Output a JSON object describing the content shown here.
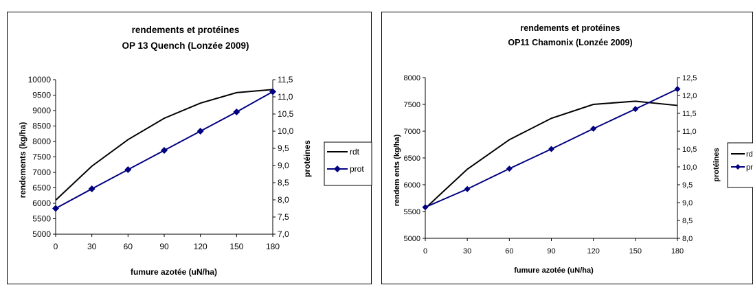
{
  "chart_data": [
    {
      "type": "line",
      "title": "rendements et protéines",
      "subtitle": "OP 13 Quench (Lonzée 2009)",
      "xlabel": "fumure azotée (uN/ha)",
      "ylabel": "rendements (kg/ha)",
      "y2label": "protéines",
      "x": [
        0,
        30,
        60,
        90,
        120,
        150,
        180
      ],
      "ylim": [
        5000,
        10000
      ],
      "y2lim": [
        7.0,
        11.5
      ],
      "yticks": [
        "5000",
        "5500",
        "6000",
        "6500",
        "7000",
        "7500",
        "8000",
        "8500",
        "9000",
        "9500",
        "10000"
      ],
      "y2ticks": [
        "7,0",
        "7,5",
        "8,0",
        "8,5",
        "9,0",
        "9,5",
        "10,0",
        "10,5",
        "11,0",
        "11,5"
      ],
      "xticks": [
        "0",
        "30",
        "60",
        "90",
        "120",
        "150",
        "180"
      ],
      "series": [
        {
          "name": "rdt",
          "axis": "left",
          "color": "#000000",
          "marker": "none",
          "values": [
            6100,
            7200,
            8060,
            8750,
            9240,
            9580,
            9680
          ]
        },
        {
          "name": "prot",
          "axis": "right",
          "color": "#000080",
          "marker": "diamond",
          "values": [
            7.75,
            8.32,
            8.88,
            9.44,
            10.0,
            10.56,
            11.15
          ]
        }
      ],
      "legend": "right"
    },
    {
      "type": "line",
      "title": "rendements et protéines",
      "subtitle": "OP11 Chamonix (Lonzée 2009)",
      "xlabel": "fumure azotée (uN/ha)",
      "ylabel": "rendem ents (kg/ha)",
      "y2label": "protéines",
      "x": [
        0,
        30,
        60,
        90,
        120,
        150,
        180
      ],
      "ylim": [
        5000,
        8000
      ],
      "y2lim": [
        8.0,
        12.5
      ],
      "yticks": [
        "5000",
        "5500",
        "6000",
        "6500",
        "7000",
        "7500",
        "8000"
      ],
      "y2ticks": [
        "8,0",
        "8,5",
        "9,0",
        "9,5",
        "10,0",
        "10,5",
        "11,0",
        "11,5",
        "12,0",
        "12,5"
      ],
      "xticks": [
        "0",
        "30",
        "60",
        "90",
        "120",
        "150",
        "180"
      ],
      "series": [
        {
          "name": "rdt",
          "axis": "left",
          "color": "#000000",
          "marker": "none",
          "values": [
            5560,
            6290,
            6840,
            7240,
            7500,
            7560,
            7480
          ]
        },
        {
          "name": "prot",
          "axis": "right",
          "color": "#000080",
          "marker": "diamond",
          "values": [
            8.87,
            9.38,
            9.95,
            10.5,
            11.07,
            11.62,
            12.18
          ]
        }
      ],
      "legend": "right"
    }
  ]
}
